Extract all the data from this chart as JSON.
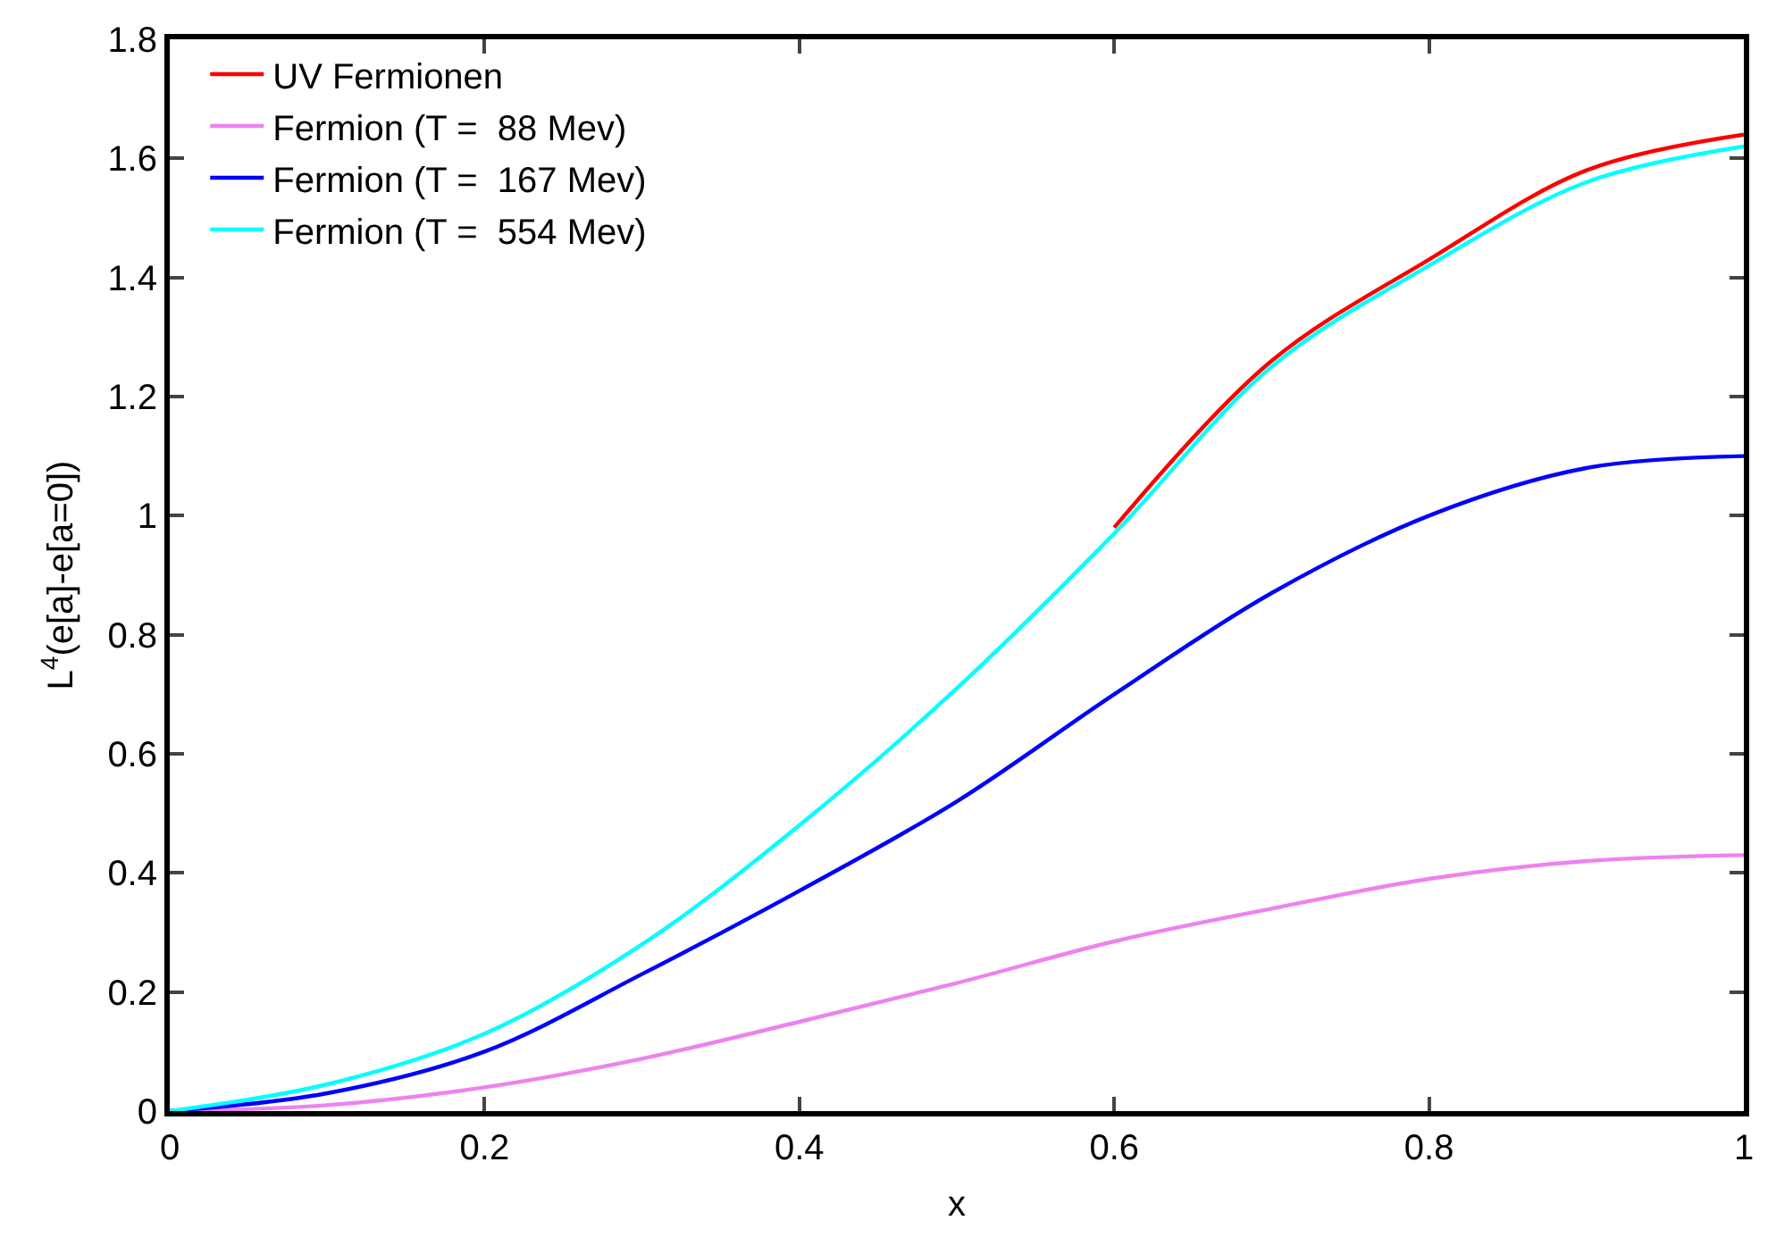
{
  "chart_data": {
    "type": "line",
    "xlabel": "x",
    "ylabel": "L$^{4}$(e[a]-e[a=0])",
    "x": [
      0,
      0.1,
      0.2,
      0.3,
      0.4,
      0.5,
      0.6,
      0.7,
      0.8,
      0.9,
      1
    ],
    "series": [
      {
        "name": "UV Fermionen",
        "color": "#ff0000",
        "values": [
          null,
          null,
          null,
          null,
          null,
          null,
          0.98,
          1.26,
          1.43,
          1.58,
          1.64
        ]
      },
      {
        "name": "Fermion (T =  88 Mev)",
        "color": "#ee82ee",
        "values": [
          0,
          0.01,
          0.04,
          0.088,
          0.15,
          0.215,
          0.285,
          0.34,
          0.39,
          0.42,
          0.43
        ]
      },
      {
        "name": "Fermion (T =  167 Mev)",
        "color": "#0000ff",
        "values": [
          0,
          0.03,
          0.1,
          0.23,
          0.37,
          0.52,
          0.7,
          0.87,
          1,
          1.08,
          1.1
        ]
      },
      {
        "name": "Fermion (T =  554 Mev)",
        "color": "#00ffff",
        "values": [
          0,
          0.045,
          0.13,
          0.28,
          0.48,
          0.71,
          0.97,
          1.25,
          1.42,
          1.56,
          1.62
        ]
      }
    ],
    "xlim": [
      0,
      1
    ],
    "ylim": [
      0,
      1.8
    ],
    "xticks": [
      0,
      0.2,
      0.4,
      0.6,
      0.8,
      1
    ],
    "yticks": [
      0,
      0.2,
      0.4,
      0.6,
      0.8,
      1,
      1.2,
      1.4,
      1.6,
      1.8
    ],
    "legend": "top left",
    "marker": "none",
    "line_style": "solid",
    "grid": false
  }
}
